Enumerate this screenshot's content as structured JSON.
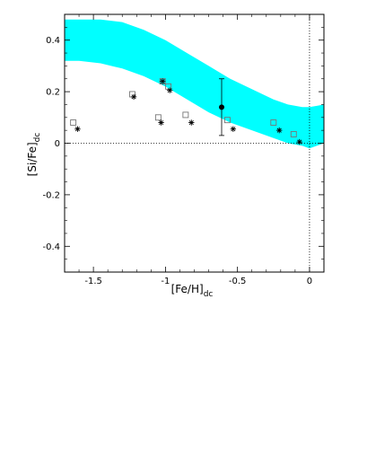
{
  "chart_data": {
    "type": "scatter",
    "xlabel": "[Fe/H]",
    "xlabel_sub": "dc",
    "ylabel": "[Si/Fe]",
    "ylabel_sub": "dc",
    "xlim": [
      -1.7,
      0.1
    ],
    "ylim": [
      -0.5,
      0.5
    ],
    "x_ticks": [
      -1.5,
      -1,
      -0.5,
      0
    ],
    "x_tick_labels": [
      "-1.5",
      "-1",
      "-0.5",
      "0"
    ],
    "y_ticks": [
      -0.4,
      -0.2,
      0,
      0.2,
      0.4
    ],
    "y_tick_labels": [
      "-0.4",
      "-0.2",
      "0",
      "0.2",
      "0.4"
    ],
    "grid": false,
    "reference_lines": {
      "y": 0,
      "x": 0,
      "style": "dotted"
    },
    "colors": {
      "band": "#00ffff",
      "markers": "#000000",
      "open_square": "#777777"
    },
    "band": {
      "x": [
        -1.7,
        -1.6,
        -1.45,
        -1.3,
        -1.15,
        -1.0,
        -0.85,
        -0.7,
        -0.55,
        -0.4,
        -0.25,
        -0.15,
        -0.05,
        0.0,
        0.05,
        0.1
      ],
      "upper": [
        0.48,
        0.48,
        0.48,
        0.47,
        0.44,
        0.4,
        0.35,
        0.3,
        0.25,
        0.21,
        0.17,
        0.15,
        0.14,
        0.14,
        0.145,
        0.15
      ],
      "lower": [
        0.32,
        0.32,
        0.31,
        0.29,
        0.26,
        0.22,
        0.17,
        0.12,
        0.08,
        0.05,
        0.02,
        0.0,
        -0.01,
        -0.02,
        -0.01,
        0.0
      ]
    },
    "series": [
      {
        "marker": "open-square",
        "points": [
          [
            -1.64,
            0.08
          ],
          [
            -1.23,
            0.19
          ],
          [
            -1.05,
            0.1
          ],
          [
            -1.02,
            0.24
          ],
          [
            -0.98,
            0.22
          ],
          [
            -0.86,
            0.11
          ],
          [
            -0.57,
            0.09
          ],
          [
            -0.25,
            0.08
          ],
          [
            -0.11,
            0.035
          ]
        ]
      },
      {
        "marker": "asterisk",
        "points": [
          [
            -1.61,
            0.055
          ],
          [
            -1.22,
            0.18
          ],
          [
            -1.03,
            0.08
          ],
          [
            -1.02,
            0.24
          ],
          [
            -0.97,
            0.205
          ],
          [
            -0.82,
            0.08
          ],
          [
            -0.53,
            0.055
          ],
          [
            -0.21,
            0.05
          ],
          [
            -0.07,
            0.005
          ]
        ]
      },
      {
        "marker": "filled-circle",
        "points": [
          [
            -0.61,
            0.14
          ]
        ],
        "yerr": [
          0.11
        ]
      }
    ]
  }
}
